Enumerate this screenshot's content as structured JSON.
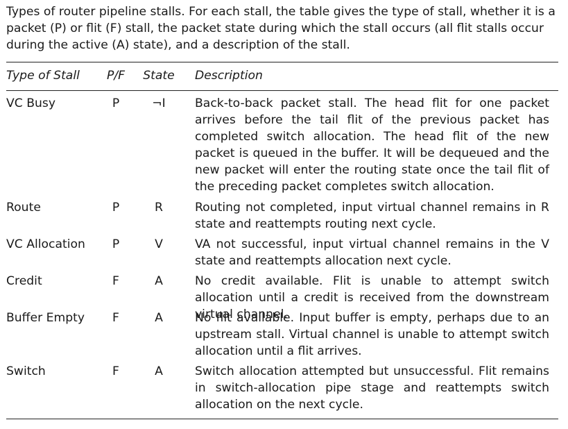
{
  "caption": "Types of router pipeline stalls. For each stall, the table gives the type of stall, whether it is a packet (P) or flit (F) stall, the packet state during which the stall occurs (all flit stalls occur during the active (A) state), and a description of the stall.",
  "table": {
    "headers": {
      "type": "Type of Stall",
      "pf": "P/F",
      "state": "State",
      "description": "Description"
    },
    "rows": [
      {
        "type": "VC Busy",
        "pf": "P",
        "state": "¬I",
        "description": "Back-to-back packet stall. The head flit for one packet arrives before the tail flit of the previous packet has completed switch allocation. The head flit of the new packet is queued in the buffer. It will be dequeued and the new packet will enter the routing state once the tail flit of the preceding packet completes switch allocation."
      },
      {
        "type": "Route",
        "pf": "P",
        "state": "R",
        "description": "Routing not completed, input virtual channel remains in R state and reattempts routing next cycle."
      },
      {
        "type": "VC Allocation",
        "pf": "P",
        "state": "V",
        "description": "VA not successful, input virtual channel remains in the V state and reattempts allocation next cycle."
      },
      {
        "type": "Credit",
        "pf": "F",
        "state": "A",
        "description": "No credit available. Flit is unable to attempt switch allocation until a credit is received from the downstream virtual channel."
      },
      {
        "type": "Buffer Empty",
        "pf": "F",
        "state": "A",
        "description": "No flit available. Input buffer is empty, perhaps due to an upstream stall. Virtual channel is unable to attempt switch allocation until a flit arrives."
      },
      {
        "type": "Switch",
        "pf": "F",
        "state": "A",
        "description": "Switch allocation attempted but unsuccessful. Flit remains in switch-allocation pipe stage and reattempts switch allocation on the next cycle."
      }
    ]
  }
}
